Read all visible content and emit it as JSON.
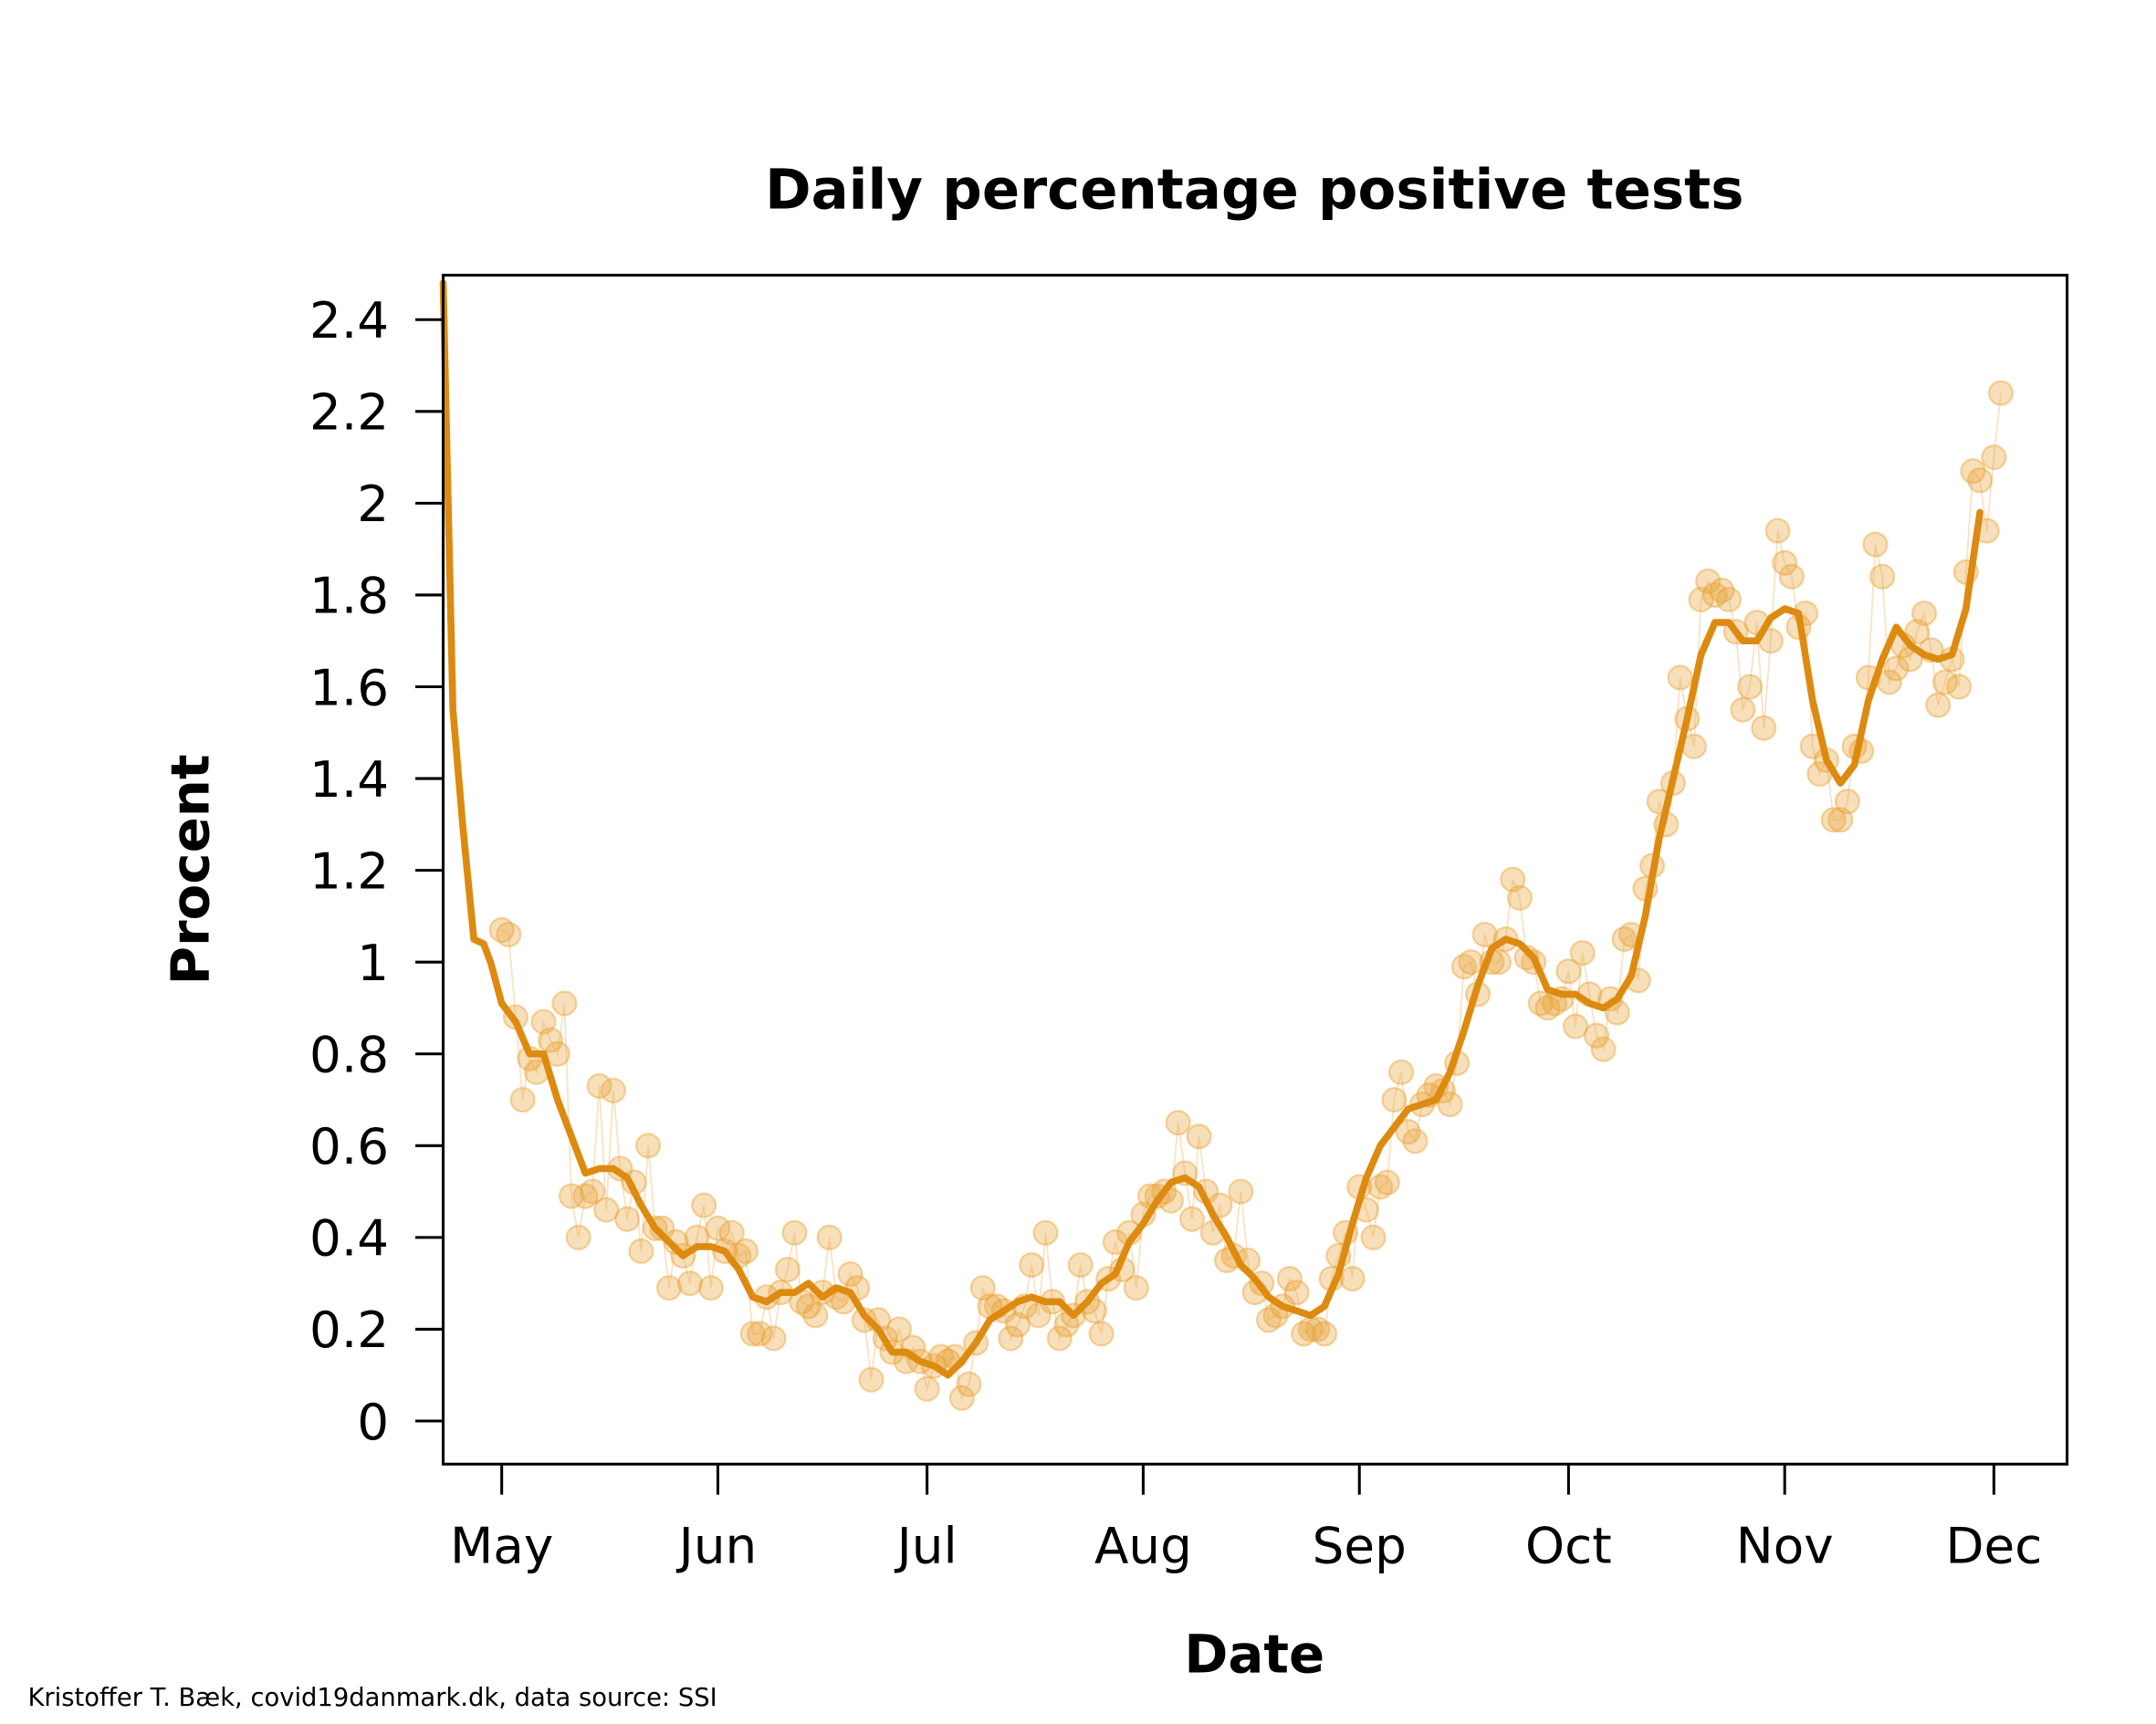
{
  "chart_data": {
    "type": "line",
    "title": "Daily percentage positive tests",
    "xlabel": "Date",
    "ylabel": "Procent",
    "caption": "Kristoffer T. Bæk, covid19danmark.dk, data source: SSI",
    "xlim": [
      -8.4,
      224.5
    ],
    "ylim": [
      -0.094,
      2.497
    ],
    "xticks": [
      {
        "value": 0,
        "label": "May"
      },
      {
        "value": 31,
        "label": "Jun"
      },
      {
        "value": 61,
        "label": "Jul"
      },
      {
        "value": 92,
        "label": "Aug"
      },
      {
        "value": 123,
        "label": "Sep"
      },
      {
        "value": 153,
        "label": "Oct"
      },
      {
        "value": 184,
        "label": "Nov"
      },
      {
        "value": 214,
        "label": "Dec"
      }
    ],
    "yticks": [
      0,
      0.2,
      0.4,
      0.6,
      0.8,
      1,
      1.2,
      1.4,
      1.6,
      1.8,
      2,
      2.2,
      2.4
    ],
    "series": [
      {
        "type": "scatter",
        "color": "#e8a33a",
        "x": [
          0,
          1,
          2,
          3,
          4,
          5,
          6,
          7,
          8,
          9,
          10,
          11,
          12,
          13,
          14,
          15,
          16,
          17,
          18,
          19,
          20,
          21,
          22,
          23,
          24,
          25,
          26,
          27,
          28,
          29,
          30,
          31,
          32,
          33,
          34,
          35,
          36,
          37,
          38,
          39,
          40,
          41,
          42,
          43,
          44,
          45,
          46,
          47,
          48,
          49,
          50,
          51,
          52,
          53,
          54,
          55,
          56,
          57,
          58,
          59,
          60,
          61,
          62,
          63,
          64,
          65,
          66,
          67,
          68,
          69,
          70,
          71,
          72,
          73,
          74,
          75,
          76,
          77,
          78,
          79,
          80,
          81,
          82,
          83,
          84,
          85,
          86,
          87,
          88,
          89,
          90,
          91,
          92,
          93,
          94,
          95,
          96,
          97,
          98,
          99,
          100,
          101,
          102,
          103,
          104,
          105,
          106,
          107,
          108,
          109,
          110,
          111,
          112,
          113,
          114,
          115,
          116,
          117,
          118,
          119,
          120,
          121,
          122,
          123,
          124,
          125,
          126,
          127,
          128,
          129,
          130,
          131,
          132,
          133,
          134,
          135,
          136,
          137,
          138,
          139,
          140,
          141,
          142,
          143,
          144,
          145,
          146,
          147,
          148,
          149,
          150,
          151,
          152,
          153,
          154,
          155,
          156,
          157,
          158,
          159,
          160,
          161,
          162,
          163,
          164,
          165,
          166,
          167,
          168,
          169,
          170,
          171,
          172,
          173,
          174,
          175,
          176,
          177,
          178,
          179,
          180,
          181,
          182,
          183,
          184,
          185,
          186,
          187,
          188,
          189,
          190,
          191,
          192,
          193,
          194,
          195,
          196,
          197,
          198,
          199,
          200,
          201,
          202,
          203,
          204,
          205,
          206,
          207,
          208,
          209,
          210,
          211,
          212,
          213,
          214,
          215
        ],
        "values": [
          1.07,
          1.06,
          0.88,
          0.7,
          0.79,
          0.76,
          0.87,
          0.83,
          0.8,
          0.91,
          0.49,
          0.4,
          0.49,
          0.5,
          0.73,
          0.46,
          0.72,
          0.55,
          0.44,
          0.52,
          0.37,
          0.6,
          0.42,
          0.42,
          0.29,
          0.39,
          0.36,
          0.3,
          0.4,
          0.47,
          0.29,
          0.42,
          0.37,
          0.41,
          0.36,
          0.37,
          0.19,
          0.19,
          0.27,
          0.18,
          0.28,
          0.33,
          0.41,
          0.26,
          0.25,
          0.23,
          0.28,
          0.4,
          0.27,
          0.26,
          0.32,
          0.29,
          0.22,
          0.09,
          0.22,
          0.18,
          0.15,
          0.2,
          0.13,
          0.16,
          0.13,
          0.07,
          0.12,
          0.14,
          0.13,
          0.14,
          0.05,
          0.08,
          0.17,
          0.29,
          0.25,
          0.25,
          0.24,
          0.18,
          0.21,
          0.25,
          0.34,
          0.23,
          0.41,
          0.26,
          0.18,
          0.21,
          0.23,
          0.34,
          0.26,
          0.24,
          0.19,
          0.31,
          0.39,
          0.33,
          0.41,
          0.29,
          0.45,
          0.49,
          0.49,
          0.5,
          0.48,
          0.65,
          0.54,
          0.44,
          0.62,
          0.5,
          0.41,
          0.47,
          0.35,
          0.36,
          0.5,
          0.35,
          0.28,
          0.3,
          0.22,
          0.23,
          0.25,
          0.31,
          0.28,
          0.19,
          0.2,
          0.2,
          0.19,
          0.31,
          0.36,
          0.41,
          0.31,
          0.51,
          0.46,
          0.4,
          0.51,
          0.52,
          0.7,
          0.76,
          0.63,
          0.61,
          0.69,
          0.71,
          0.73,
          0.72,
          0.69,
          0.78,
          0.99,
          1.0,
          0.93,
          1.06,
          1.0,
          1.0,
          1.05,
          1.18,
          1.14,
          1.01,
          1.0,
          0.91,
          0.9,
          0.91,
          0.92,
          0.98,
          0.86,
          1.02,
          0.93,
          0.84,
          0.81,
          0.92,
          0.89,
          1.05,
          1.06,
          0.96,
          1.16,
          1.21,
          1.35,
          1.3,
          1.39,
          1.62,
          1.53,
          1.47,
          1.79,
          1.83,
          1.8,
          1.81,
          1.79,
          1.72,
          1.55,
          1.6,
          1.74,
          1.51,
          1.7,
          1.94,
          1.87,
          1.84,
          1.73,
          1.76,
          1.47,
          1.41,
          1.44,
          1.31,
          1.31,
          1.35,
          1.47,
          1.46,
          1.62,
          1.91,
          1.84,
          1.61,
          1.64,
          1.69,
          1.66,
          1.72,
          1.76,
          1.68,
          1.56,
          1.61,
          1.66,
          1.6,
          1.85,
          2.07,
          2.05,
          1.94,
          2.1,
          2.24
        ]
      },
      {
        "type": "line",
        "color": "#dd8a10",
        "x": [
          -8.4,
          -7,
          -5.6,
          -4,
          -2.6,
          -1.6,
          0,
          2,
          4,
          6,
          8,
          10,
          12,
          14,
          16,
          18,
          20,
          22,
          24,
          26,
          28,
          30,
          32,
          34,
          36,
          38,
          40,
          42,
          44,
          46,
          48,
          50,
          52,
          54,
          56,
          58,
          60,
          62,
          64,
          66,
          68,
          70,
          72,
          74,
          76,
          78,
          80,
          82,
          84,
          86,
          88,
          90,
          92,
          94,
          96,
          98,
          100,
          102,
          104,
          106,
          108,
          110,
          112,
          114,
          116,
          118,
          120,
          122,
          124,
          126,
          128,
          130,
          132,
          134,
          136,
          138,
          140,
          142,
          144,
          146,
          148,
          150,
          152,
          154,
          156,
          158,
          160,
          162,
          164,
          166,
          168,
          170,
          172,
          174,
          176,
          178,
          180,
          182,
          184,
          186,
          188,
          190,
          192,
          194,
          196,
          198,
          200,
          202,
          204,
          206,
          208,
          210,
          212
        ],
        "values": [
          2.48,
          1.55,
          1.3,
          1.05,
          1.04,
          1.0,
          0.91,
          0.87,
          0.8,
          0.8,
          0.7,
          0.62,
          0.54,
          0.55,
          0.55,
          0.53,
          0.47,
          0.42,
          0.39,
          0.36,
          0.38,
          0.38,
          0.37,
          0.33,
          0.27,
          0.26,
          0.28,
          0.28,
          0.3,
          0.27,
          0.29,
          0.28,
          0.23,
          0.2,
          0.15,
          0.15,
          0.13,
          0.12,
          0.1,
          0.13,
          0.17,
          0.22,
          0.24,
          0.26,
          0.27,
          0.26,
          0.26,
          0.23,
          0.26,
          0.3,
          0.32,
          0.39,
          0.43,
          0.48,
          0.52,
          0.53,
          0.51,
          0.45,
          0.4,
          0.34,
          0.31,
          0.27,
          0.25,
          0.24,
          0.23,
          0.25,
          0.32,
          0.43,
          0.53,
          0.6,
          0.64,
          0.68,
          0.69,
          0.7,
          0.76,
          0.85,
          0.95,
          1.03,
          1.05,
          1.04,
          1.01,
          0.94,
          0.93,
          0.93,
          0.91,
          0.9,
          0.92,
          0.97,
          1.1,
          1.27,
          1.4,
          1.53,
          1.67,
          1.74,
          1.74,
          1.7,
          1.7,
          1.75,
          1.77,
          1.76,
          1.57,
          1.44,
          1.39,
          1.43,
          1.57,
          1.66,
          1.73,
          1.69,
          1.67,
          1.66,
          1.67,
          1.77,
          1.98
        ]
      }
    ]
  }
}
